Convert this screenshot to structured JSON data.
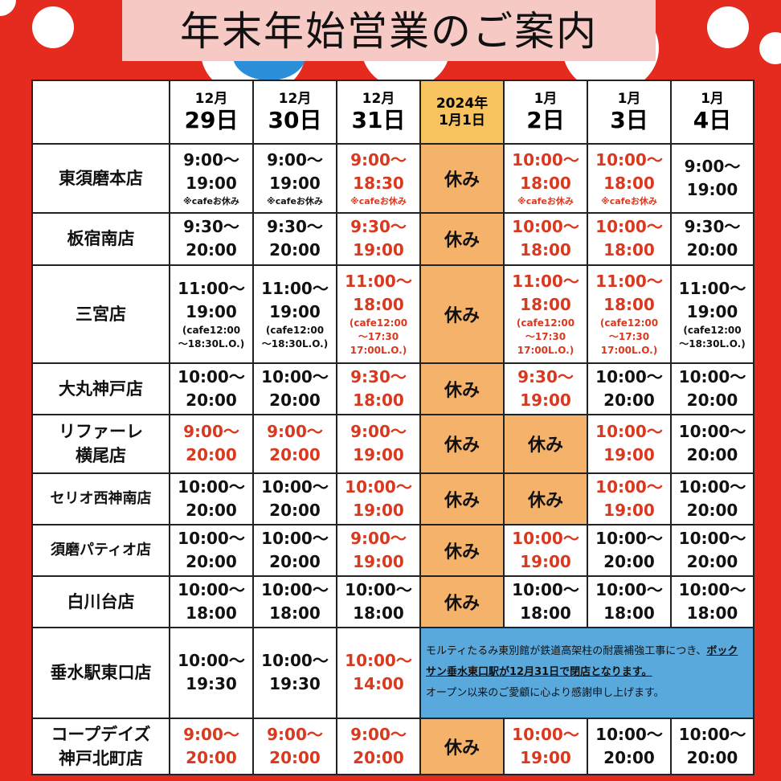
{
  "title": "年末年始営業のご案内",
  "colors": {
    "background": "#e52a1f",
    "closed": "#f5b26b",
    "highlight_day": "#f7c35f",
    "notice": "#5aa9dc",
    "changed_hours": "#d9391f"
  },
  "headers": [
    {
      "month": "12月",
      "day": "29日"
    },
    {
      "month": "12月",
      "day": "30日"
    },
    {
      "month": "12月",
      "day": "31日"
    },
    {
      "month": "2024年",
      "day": "1月1日"
    },
    {
      "month": "1月",
      "day": "2日"
    },
    {
      "month": "1月",
      "day": "3日"
    },
    {
      "month": "1月",
      "day": "4日"
    }
  ],
  "rows": [
    {
      "name": [
        "東須磨本店"
      ],
      "cells": [
        {
          "l1": "9:00〜",
          "l2": "19:00",
          "note": "※cafeお休み"
        },
        {
          "l1": "9:00〜",
          "l2": "19:00",
          "note": "※cafeお休み"
        },
        {
          "l1": "9:00〜",
          "l2": "18:30",
          "note": "※cafeお休み"
        },
        {
          "closed": "休み"
        },
        {
          "l1": "10:00〜",
          "l2": "18:00",
          "note": "※cafeお休み"
        },
        {
          "l1": "10:00〜",
          "l2": "18:00",
          "note": "※cafeお休み"
        },
        {
          "l1": "9:00〜",
          "l2": "19:00"
        }
      ]
    },
    {
      "name": [
        "板宿南店"
      ],
      "cells": [
        {
          "l1": "9:30〜",
          "l2": "20:00"
        },
        {
          "l1": "9:30〜",
          "l2": "20:00"
        },
        {
          "l1": "9:30〜",
          "l2": "19:00"
        },
        {
          "closed": "休み"
        },
        {
          "l1": "10:00〜",
          "l2": "18:00"
        },
        {
          "l1": "10:00〜",
          "l2": "18:00"
        },
        {
          "l1": "9:30〜",
          "l2": "20:00"
        }
      ]
    },
    {
      "name": [
        "三宮店"
      ],
      "cells": [
        {
          "l1": "11:00〜",
          "l2": "19:00",
          "s1": "(cafe12:00",
          "s2": "〜18:30L.O.)"
        },
        {
          "l1": "11:00〜",
          "l2": "19:00",
          "s1": "(cafe12:00",
          "s2": "〜18:30L.O.)"
        },
        {
          "l1": "11:00〜",
          "l2": "18:00",
          "s1": "(cafe12:00",
          "s2": "〜17:30",
          "s3": "17:00L.O.)"
        },
        {
          "closed": "休み"
        },
        {
          "l1": "11:00〜",
          "l2": "18:00",
          "s1": "(cafe12:00",
          "s2": "〜17:30",
          "s3": "17:00L.O.)"
        },
        {
          "l1": "11:00〜",
          "l2": "18:00",
          "s1": "(cafe12:00",
          "s2": "〜17:30",
          "s3": "17:00L.O.)"
        },
        {
          "l1": "11:00〜",
          "l2": "19:00",
          "s1": "(cafe12:00",
          "s2": "〜18:30L.O.)"
        }
      ]
    },
    {
      "name": [
        "大丸神戸店"
      ],
      "cells": [
        {
          "l1": "10:00〜",
          "l2": "20:00"
        },
        {
          "l1": "10:00〜",
          "l2": "20:00"
        },
        {
          "l1": "9:30〜",
          "l2": "18:00"
        },
        {
          "closed": "休み"
        },
        {
          "l1": "9:30〜",
          "l2": "19:00"
        },
        {
          "l1": "10:00〜",
          "l2": "20:00"
        },
        {
          "l1": "10:00〜",
          "l2": "20:00"
        }
      ]
    },
    {
      "name": [
        "リファーレ",
        "横尾店"
      ],
      "cells": [
        {
          "l1": "9:00〜",
          "l2": "20:00"
        },
        {
          "l1": "9:00〜",
          "l2": "20:00"
        },
        {
          "l1": "9:00〜",
          "l2": "19:00"
        },
        {
          "closed": "休み"
        },
        {
          "closed": "休み"
        },
        {
          "l1": "10:00〜",
          "l2": "19:00"
        },
        {
          "l1": "10:00〜",
          "l2": "20:00"
        }
      ]
    },
    {
      "name": [
        "セリオ西神南店"
      ],
      "cells": [
        {
          "l1": "10:00〜",
          "l2": "20:00"
        },
        {
          "l1": "10:00〜",
          "l2": "20:00"
        },
        {
          "l1": "10:00〜",
          "l2": "19:00"
        },
        {
          "closed": "休み"
        },
        {
          "closed": "休み"
        },
        {
          "l1": "10:00〜",
          "l2": "19:00"
        },
        {
          "l1": "10:00〜",
          "l2": "20:00"
        }
      ]
    },
    {
      "name": [
        "須磨パティオ店"
      ],
      "cells": [
        {
          "l1": "10:00〜",
          "l2": "20:00"
        },
        {
          "l1": "10:00〜",
          "l2": "20:00"
        },
        {
          "l1": "9:00〜",
          "l2": "19:00"
        },
        {
          "closed": "休み"
        },
        {
          "l1": "10:00〜",
          "l2": "19:00"
        },
        {
          "l1": "10:00〜",
          "l2": "20:00"
        },
        {
          "l1": "10:00〜",
          "l2": "20:00"
        }
      ]
    },
    {
      "name": [
        "白川台店"
      ],
      "cells": [
        {
          "l1": "10:00〜",
          "l2": "18:00"
        },
        {
          "l1": "10:00〜",
          "l2": "18:00"
        },
        {
          "l1": "10:00〜",
          "l2": "18:00"
        },
        {
          "closed": "休み"
        },
        {
          "l1": "10:00〜",
          "l2": "18:00"
        },
        {
          "l1": "10:00〜",
          "l2": "18:00"
        },
        {
          "l1": "10:00〜",
          "l2": "18:00"
        }
      ]
    },
    {
      "name": [
        "垂水駅東口店"
      ],
      "cells": [
        {
          "l1": "10:00〜",
          "l2": "19:30"
        },
        {
          "l1": "10:00〜",
          "l2": "19:30"
        },
        {
          "l1": "10:00〜",
          "l2": "14:00"
        }
      ],
      "notice": {
        "p1": "モルティたるみ東別館が鉄道高架柱の耐震補強工事につき、",
        "p2": "ボックサン垂水東口駅が12月31日で閉店となります。",
        "p3": "オープン以来のご愛顧に心より感謝申し上げます。"
      }
    },
    {
      "name": [
        "コープデイズ",
        "神戸北町店"
      ],
      "cells": [
        {
          "l1": "9:00〜",
          "l2": "20:00"
        },
        {
          "l1": "9:00〜",
          "l2": "20:00"
        },
        {
          "l1": "9:00〜",
          "l2": "20:00"
        },
        {
          "closed": "休み"
        },
        {
          "l1": "10:00〜",
          "l2": "19:00"
        },
        {
          "l1": "10:00〜",
          "l2": "20:00"
        },
        {
          "l1": "10:00〜",
          "l2": "20:00"
        }
      ]
    }
  ]
}
